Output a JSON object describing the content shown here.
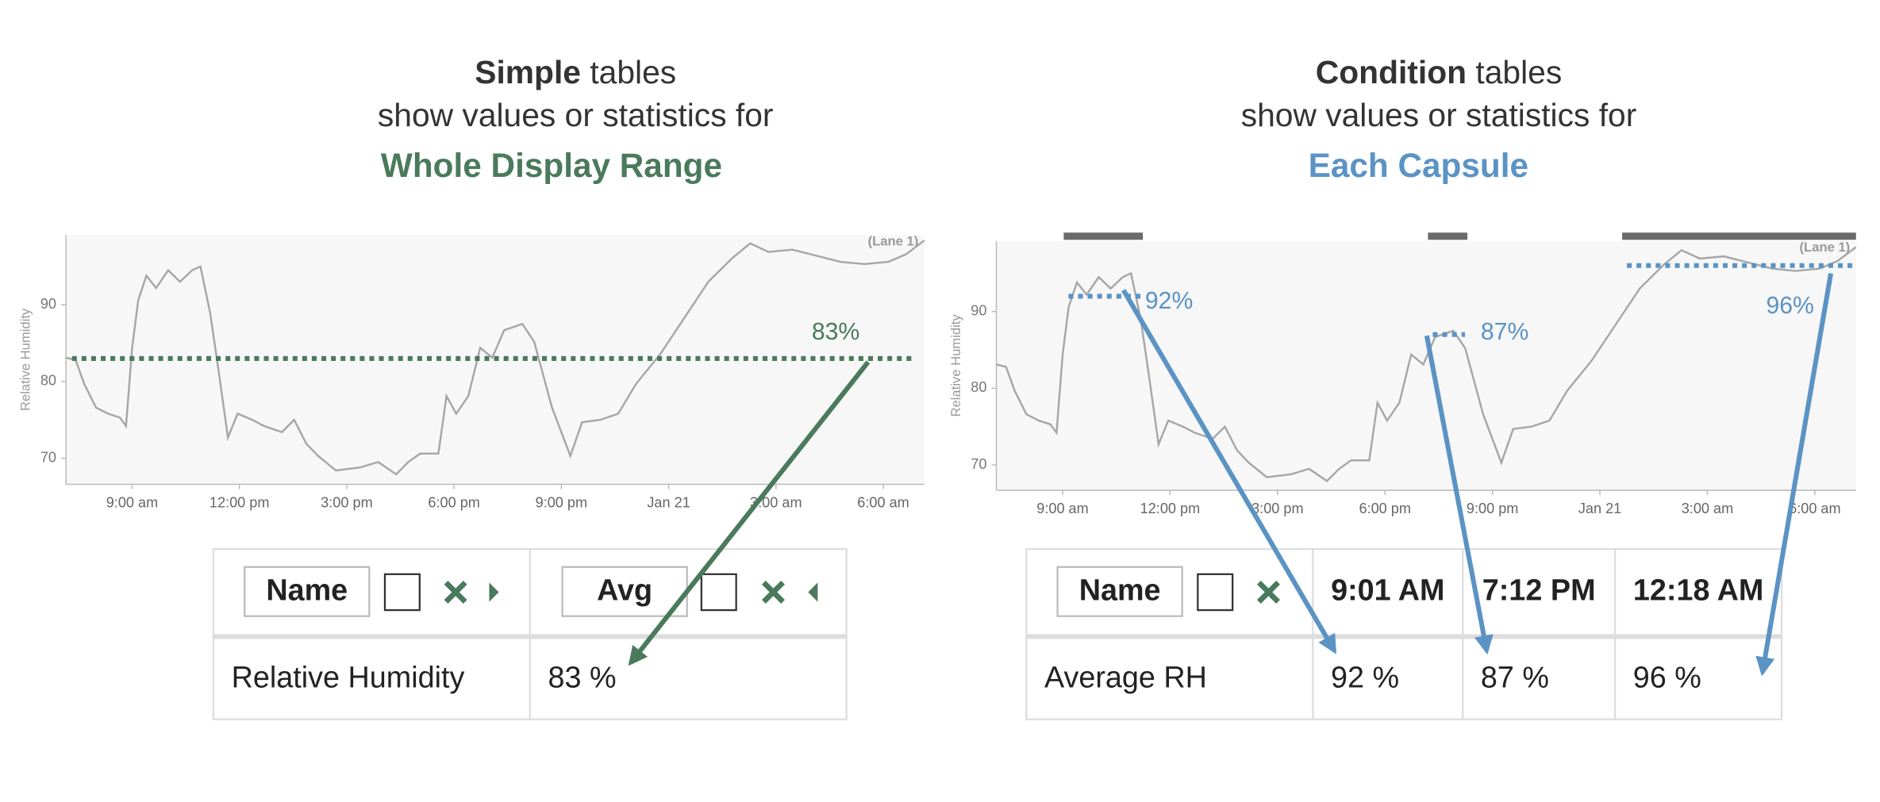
{
  "panels": [
    {
      "heading": [
        "Simple",
        "tables"
      ],
      "subheading": "show values or statistics for",
      "scope": "Whole Display Range",
      "color": "#4a7a5c",
      "table": {
        "columns": [
          "Name",
          "Avg"
        ],
        "rows": [
          [
            "Relative Humidity",
            "83 %"
          ]
        ]
      }
    },
    {
      "heading": [
        "Condition",
        "tables"
      ],
      "subheading": "show values or statistics for",
      "scope": "Each Capsule",
      "color": "#5b93c4",
      "table": {
        "columns": [
          "Name",
          "9:01 AM",
          "7:12 PM",
          "12:18 AM"
        ],
        "rows": [
          [
            "Average RH",
            "92 %",
            "87 %",
            "96 %"
          ]
        ]
      }
    }
  ],
  "chart_data": [
    {
      "type": "line",
      "y_label": "Relative Humidity",
      "annotation": "(Lane 1)",
      "color": "#a6a6a6",
      "x": [
        7.15,
        7.42,
        7.66,
        7.99,
        8.33,
        8.66,
        8.83,
        9,
        9.17,
        9.4,
        9.67,
        10.01,
        10.34,
        10.68,
        10.91,
        11.18,
        11.42,
        11.68,
        11.95,
        12.36,
        12.69,
        13.19,
        13.53,
        13.87,
        14.2,
        14.7,
        15.38,
        15.88,
        16.38,
        16.72,
        17.05,
        17.56,
        17.79,
        18.06,
        18.4,
        18.73,
        19.07,
        19.4,
        19.91,
        20.24,
        20.74,
        21.25,
        21.58,
        22.09,
        22.59,
        23.09,
        23.77,
        24.44,
        25.11,
        25.78,
        26.28,
        26.79,
        27.46,
        28.13,
        28.8,
        29.47,
        30.14,
        30.64,
        31.15
      ],
      "values": [
        83.1,
        82.8,
        79.7,
        76.6,
        75.8,
        75.3,
        74.2,
        84.4,
        90.6,
        93.8,
        92.2,
        94.5,
        93,
        94.5,
        95,
        89,
        81.3,
        72.7,
        75.8,
        75,
        74.2,
        73.4,
        75,
        71.9,
        70.3,
        68.4,
        68.8,
        69.5,
        67.9,
        69.5,
        70.6,
        70.6,
        78.1,
        75.8,
        78.1,
        84.4,
        83.1,
        86.7,
        87.5,
        85.2,
        76.6,
        70.3,
        74.7,
        75,
        75.8,
        79.7,
        83.6,
        88.3,
        93,
        96.1,
        98,
        96.9,
        97.2,
        96.4,
        95.6,
        95.3,
        95.6,
        96.6,
        98.4
      ],
      "xlim": [
        7.15,
        31.15
      ],
      "ylim": [
        66.6,
        99.1
      ],
      "xticks": [
        {
          "value": 9,
          "label": "9:00 am"
        },
        {
          "value": 12,
          "label": "12:00 pm"
        },
        {
          "value": 15,
          "label": "3:00 pm"
        },
        {
          "value": 18,
          "label": "6:00 pm"
        },
        {
          "value": 21,
          "label": "9:00 pm"
        },
        {
          "value": 24,
          "label": "Jan 21"
        },
        {
          "value": 27,
          "label": "3:00 am"
        },
        {
          "value": 30,
          "label": "6:00 am"
        }
      ],
      "yticks": [
        70,
        80,
        90
      ],
      "reference_lines": [
        {
          "value": 83,
          "label": "83%",
          "start": 7.32,
          "end": 30.8,
          "color": "#4a7a5c"
        }
      ]
    },
    {
      "type": "line",
      "y_label": "Relative Humidity",
      "annotation": "(Lane 1)",
      "color": "#a6a6a6",
      "x": [
        7.15,
        7.42,
        7.66,
        7.99,
        8.33,
        8.66,
        8.83,
        9,
        9.17,
        9.4,
        9.67,
        10.01,
        10.34,
        10.68,
        10.91,
        11.18,
        11.42,
        11.68,
        11.95,
        12.36,
        12.69,
        13.19,
        13.53,
        13.87,
        14.2,
        14.7,
        15.38,
        15.88,
        16.38,
        16.72,
        17.05,
        17.56,
        17.79,
        18.06,
        18.4,
        18.73,
        19.07,
        19.4,
        19.91,
        20.24,
        20.74,
        21.25,
        21.58,
        22.09,
        22.59,
        23.09,
        23.77,
        24.44,
        25.11,
        25.78,
        26.28,
        26.79,
        27.46,
        28.13,
        28.8,
        29.47,
        30.14,
        30.64,
        31.15
      ],
      "values": [
        83.1,
        82.8,
        79.7,
        76.6,
        75.8,
        75.3,
        74.2,
        84.4,
        90.6,
        93.8,
        92.2,
        94.5,
        93,
        94.5,
        95,
        89,
        81.3,
        72.7,
        75.8,
        75,
        74.2,
        73.4,
        75,
        71.9,
        70.3,
        68.4,
        68.8,
        69.5,
        67.9,
        69.5,
        70.6,
        70.6,
        78.1,
        75.8,
        78.1,
        84.4,
        83.1,
        86.7,
        87.5,
        85.2,
        76.6,
        70.3,
        74.7,
        75,
        75.8,
        79.7,
        83.6,
        88.3,
        93,
        96.1,
        98,
        96.9,
        97.2,
        96.4,
        95.6,
        95.3,
        95.6,
        96.6,
        98.4
      ],
      "xlim": [
        7.15,
        31.15
      ],
      "ylim": [
        66.7,
        99.2
      ],
      "xticks": [
        {
          "value": 9,
          "label": "9:00 am"
        },
        {
          "value": 12,
          "label": "12:00 pm"
        },
        {
          "value": 15,
          "label": "3:00 pm"
        },
        {
          "value": 18,
          "label": "6:00 pm"
        },
        {
          "value": 21,
          "label": "9:00 pm"
        },
        {
          "value": 24,
          "label": "Jan 21"
        },
        {
          "value": 27,
          "label": "3:00 am"
        },
        {
          "value": 30,
          "label": "6:00 am"
        }
      ],
      "yticks": [
        70,
        80,
        90
      ],
      "capsule_color": "#6b6b6b",
      "capsules": [
        {
          "start": 9.03,
          "end": 11.24,
          "value": 92,
          "label": "92%",
          "color": "#5b93c4"
        },
        {
          "start": 19.2,
          "end": 20.3,
          "value": 87,
          "label": "87%",
          "color": "#5b93c4"
        },
        {
          "start": 24.62,
          "end": 31.15,
          "value": 96,
          "label": "96%",
          "color": "#5b93c4"
        }
      ]
    }
  ]
}
